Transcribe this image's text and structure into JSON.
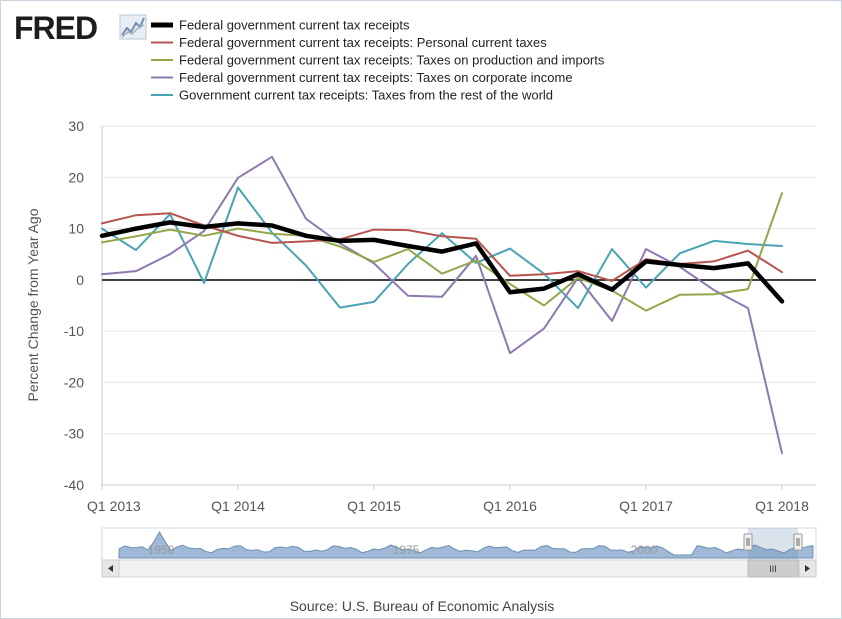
{
  "logo": {
    "text": "FRED"
  },
  "source": "Source: U.S. Bureau of Economic Analysis",
  "chart_data": {
    "type": "line",
    "title": "",
    "xlabel": "",
    "ylabel": "Percent Change from Year Ago",
    "ylim": [
      -40,
      30
    ],
    "yticks": [
      30,
      20,
      10,
      0,
      -10,
      -20,
      -30,
      -40
    ],
    "grid": "horizontal",
    "legend_position": "top",
    "x": [
      "Q1 2013",
      "Q2 2013",
      "Q3 2013",
      "Q4 2013",
      "Q1 2014",
      "Q2 2014",
      "Q3 2014",
      "Q4 2014",
      "Q1 2015",
      "Q2 2015",
      "Q3 2015",
      "Q4 2015",
      "Q1 2016",
      "Q2 2016",
      "Q3 2016",
      "Q4 2016",
      "Q1 2017",
      "Q2 2017",
      "Q3 2017",
      "Q4 2017",
      "Q1 2018",
      "Q2 2018"
    ],
    "xtick_labels": [
      {
        "index": 0,
        "label": "Q1 2013"
      },
      {
        "index": 4,
        "label": "Q1 2014"
      },
      {
        "index": 8,
        "label": "Q1 2015"
      },
      {
        "index": 12,
        "label": "Q1 2016"
      },
      {
        "index": 16,
        "label": "Q1 2017"
      },
      {
        "index": 20,
        "label": "Q1 2018"
      }
    ],
    "series": [
      {
        "name": "Government current tax receipts: Taxes from the rest of the world",
        "color": "#4aa3b5",
        "width": 2,
        "values": [
          10.0,
          5.8,
          12.8,
          -0.6,
          18.0,
          9.2,
          2.8,
          -5.4,
          -4.3,
          3.1,
          9.1,
          3.3,
          6.1,
          1.2,
          -5.5,
          6.0,
          -1.5,
          5.2,
          7.6,
          7.0,
          6.6,
          null
        ]
      },
      {
        "name": "Federal government current tax receipts: Taxes on corporate income",
        "color": "#8e79b0",
        "width": 2,
        "values": [
          1.1,
          1.7,
          5.0,
          9.5,
          19.9,
          24.0,
          11.9,
          7.1,
          3.2,
          -3.1,
          -3.3,
          4.7,
          -14.3,
          -9.5,
          0.4,
          -8.0,
          6.0,
          2.5,
          -2.0,
          -5.5,
          -33.8,
          null
        ]
      },
      {
        "name": "Federal government current tax receipts: Taxes on production and imports",
        "color": "#91a84a",
        "width": 2,
        "values": [
          7.3,
          8.5,
          9.8,
          8.6,
          10.0,
          9.0,
          8.6,
          6.5,
          3.5,
          6.0,
          1.2,
          3.8,
          -0.8,
          -5.0,
          0.4,
          -2.1,
          -6.0,
          -2.9,
          -2.8,
          -1.8,
          16.9,
          null
        ]
      },
      {
        "name": "Federal government current tax receipts: Personal current taxes",
        "color": "#b85450",
        "width": 2,
        "values": [
          11.0,
          12.6,
          13.0,
          10.6,
          8.6,
          7.2,
          7.5,
          7.9,
          9.8,
          9.7,
          8.5,
          8.0,
          0.8,
          1.1,
          1.7,
          -0.2,
          4.0,
          3.1,
          3.6,
          5.7,
          1.5,
          null
        ]
      },
      {
        "name": "Federal government current tax receipts",
        "color": "#000000",
        "width": 4.5,
        "values": [
          8.6,
          10.0,
          11.2,
          10.3,
          11.0,
          10.6,
          8.6,
          7.6,
          7.8,
          6.6,
          5.5,
          7.1,
          -2.4,
          -1.7,
          1.1,
          -1.9,
          3.6,
          2.9,
          2.3,
          3.2,
          -4.2,
          null
        ]
      }
    ],
    "legend": [
      {
        "label": "Federal government current tax receipts",
        "color": "#000000",
        "thick": true
      },
      {
        "label": "Federal government current tax receipts: Personal current taxes",
        "color": "#b85450",
        "thick": false
      },
      {
        "label": "Federal government current tax receipts: Taxes on production and imports",
        "color": "#91a84a",
        "thick": false
      },
      {
        "label": "Federal government current tax receipts: Taxes on corporate income",
        "color": "#8e79b0",
        "thick": false
      },
      {
        "label": "Government current tax receipts: Taxes from the rest of the world",
        "color": "#4aa3b5",
        "thick": false
      }
    ],
    "navigator": {
      "labels": [
        "1950",
        "1975",
        "2000"
      ],
      "scrollbar_thumb_label": "III"
    }
  }
}
